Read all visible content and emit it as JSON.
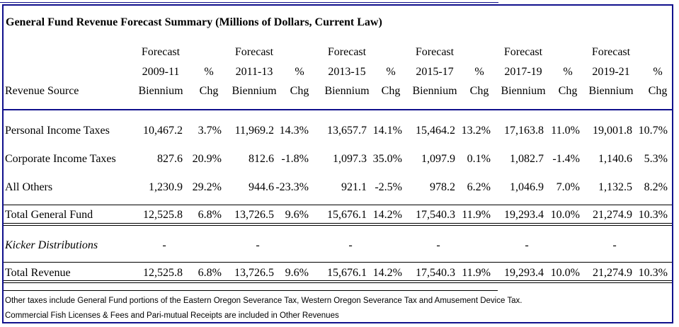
{
  "title": "General Fund Revenue Forecast Summary (Millions of Dollars, Current Law)",
  "header": {
    "revenue_source": "Revenue Source",
    "periods": [
      {
        "line1": "Forecast",
        "line2": "2009-11",
        "line3": "Biennium",
        "chg1": "%",
        "chg2": "Chg"
      },
      {
        "line1": "Forecast",
        "line2": "2011-13",
        "line3": "Biennium",
        "chg1": "%",
        "chg2": "Chg"
      },
      {
        "line1": "Forecast",
        "line2": "2013-15",
        "line3": "Biennium",
        "chg1": "%",
        "chg2": "Chg"
      },
      {
        "line1": "Forecast",
        "line2": "2015-17",
        "line3": "Biennium",
        "chg1": "%",
        "chg2": "Chg"
      },
      {
        "line1": "Forecast",
        "line2": "2017-19",
        "line3": "Biennium",
        "chg1": "%",
        "chg2": "Chg"
      },
      {
        "line1": "Forecast",
        "line2": "2019-21",
        "line3": "Biennium",
        "chg1": "%",
        "chg2": "Chg"
      }
    ]
  },
  "rows": [
    {
      "label": "Personal Income Taxes",
      "values": [
        "10,467.2",
        "3.7%",
        "11,969.2",
        "14.3%",
        "13,657.7",
        "14.1%",
        "15,464.2",
        "13.2%",
        "17,163.8",
        "11.0%",
        "19,001.8",
        "10.7%"
      ]
    },
    {
      "label": "Corporate Income Taxes",
      "values": [
        "827.6",
        "20.9%",
        "812.6",
        "-1.8%",
        "1,097.3",
        "35.0%",
        "1,097.9",
        "0.1%",
        "1,082.7",
        "-1.4%",
        "1,140.6",
        "5.3%"
      ]
    },
    {
      "label": "All Others",
      "values": [
        "1,230.9",
        "29.2%",
        "944.6",
        "-23.3%",
        "921.1",
        "-2.5%",
        "978.2",
        "6.2%",
        "1,046.9",
        "7.0%",
        "1,132.5",
        "8.2%"
      ]
    },
    {
      "label": "Total General Fund",
      "values": [
        "12,525.8",
        "6.8%",
        "13,726.5",
        "9.6%",
        "15,676.1",
        "14.2%",
        "17,540.3",
        "11.9%",
        "19,293.4",
        "10.0%",
        "21,274.9",
        "10.3%"
      ]
    }
  ],
  "kicker": {
    "label": "Kicker Distributions",
    "values": [
      "-",
      "-",
      "-",
      "-",
      "-",
      "-"
    ]
  },
  "total_revenue": {
    "label": "Total Revenue",
    "values": [
      "12,525.8",
      "6.8%",
      "13,726.5",
      "9.6%",
      "15,676.1",
      "14.2%",
      "17,540.3",
      "11.9%",
      "19,293.4",
      "10.0%",
      "21,274.9",
      "10.3%"
    ]
  },
  "notes": [
    "Other taxes include General Fund portions of the Eastern Oregon Severance Tax, Western Oregon Severance Tax and Amusement Device Tax.",
    "Commercial Fish Licenses & Fees and Pari-mutual Receipts are included in Other Revenues"
  ],
  "colors": {
    "frame": "#10108c",
    "text": "#000000",
    "background": "#ffffff"
  }
}
